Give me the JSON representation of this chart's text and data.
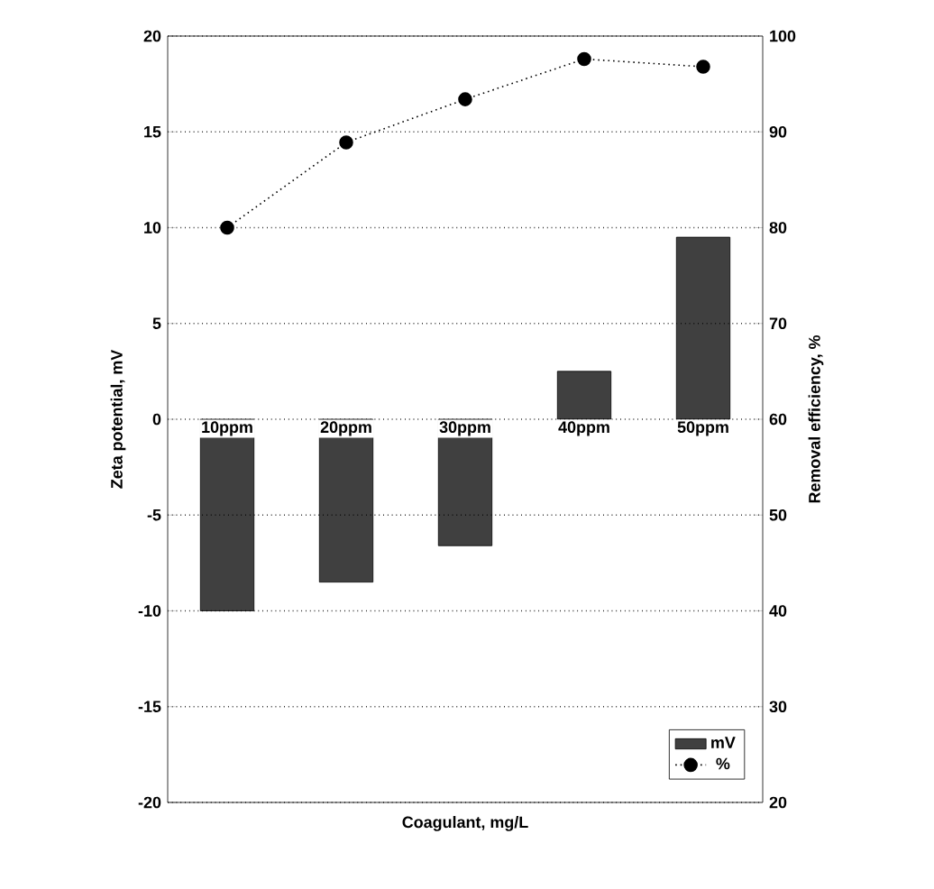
{
  "chart_data": {
    "type": "bar",
    "xlabel": "Coagulant, mg/L",
    "ylabel": "Zeta potential, mV",
    "y2label": "Removal efficiency, %",
    "categories": [
      "10ppm",
      "20ppm",
      "30ppm",
      "40ppm",
      "50ppm"
    ],
    "series": [
      {
        "name": "mV",
        "color": "#404040",
        "values": [
          -10,
          -8.5,
          -6.6,
          2.5,
          9.5
        ]
      },
      {
        "name": "%",
        "type": "line",
        "axis": "y2",
        "color": "#000000",
        "marker": "circle",
        "line_style": "dotted",
        "values": [
          80,
          88.9,
          93.4,
          97.6,
          96.8
        ]
      }
    ],
    "ylim": [
      -20,
      20
    ],
    "yticks": [
      -20,
      -15,
      -10,
      -5,
      0,
      5,
      10,
      15,
      20
    ],
    "y2lim": [
      20,
      100
    ],
    "y2ticks": [
      20,
      30,
      40,
      50,
      60,
      70,
      80,
      90,
      100
    ],
    "grid": "y",
    "legend": "bottom right"
  }
}
